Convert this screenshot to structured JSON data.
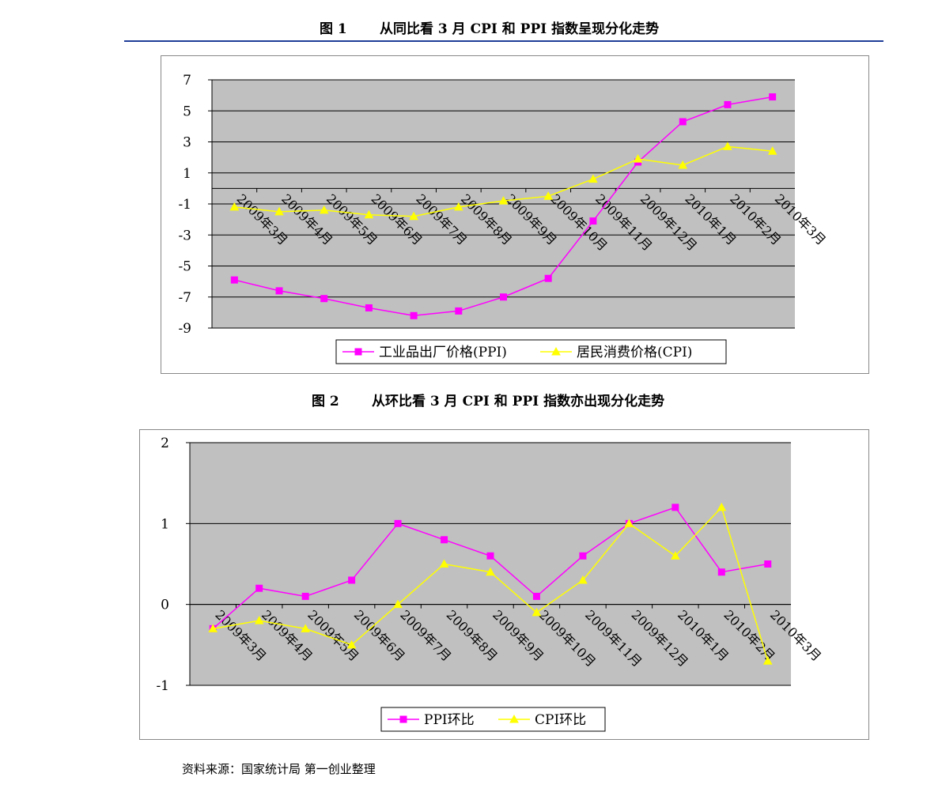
{
  "chart_data": [
    {
      "type": "line",
      "figure_label": "图 1",
      "title": "从同比看 3 月 CPI 和 PPI 指数呈现分化走势",
      "categories": [
        "2009年3月",
        "2009年4月",
        "2009年5月",
        "2009年6月",
        "2009年7月",
        "2009年8月",
        "2009年9月",
        "2009年10月",
        "2009年11月",
        "2009年12月",
        "2010年1月",
        "2010年2月",
        "2010年3月"
      ],
      "series": [
        {
          "name": "工业品出厂价格(PPI)",
          "color": "#ff00ff",
          "marker": "square",
          "values": [
            -5.9,
            -6.6,
            -7.1,
            -7.7,
            -8.2,
            -7.9,
            -7.0,
            -5.8,
            -2.1,
            1.7,
            4.3,
            5.4,
            5.9
          ]
        },
        {
          "name": "居民消费价格(CPI)",
          "color": "#ffff00",
          "marker": "triangle",
          "values": [
            -1.2,
            -1.5,
            -1.4,
            -1.7,
            -1.8,
            -1.2,
            -0.8,
            -0.5,
            0.6,
            1.9,
            1.5,
            2.7,
            2.4
          ]
        }
      ],
      "ylim": [
        -9,
        7
      ],
      "yticks": [
        -9,
        -7,
        -5,
        -3,
        -1,
        1,
        3,
        5,
        7
      ],
      "grid": true,
      "legend": "bottom"
    },
    {
      "type": "line",
      "figure_label": "图 2",
      "title": "从环比看 3 月 CPI 和 PPI 指数亦出现分化走势",
      "categories": [
        "2009年3月",
        "2009年4月",
        "2009年5月",
        "2009年6月",
        "2009年7月",
        "2009年8月",
        "2009年9月",
        "2009年10月",
        "2009年11月",
        "2009年12月",
        "2010年1月",
        "2010年2月",
        "2010年3月"
      ],
      "series": [
        {
          "name": "PPI环比",
          "color": "#ff00ff",
          "marker": "square",
          "values": [
            -0.3,
            0.2,
            0.1,
            0.3,
            1.0,
            0.8,
            0.6,
            0.1,
            0.6,
            1.0,
            1.2,
            0.4,
            0.5
          ]
        },
        {
          "name": "CPI环比",
          "color": "#ffff00",
          "marker": "triangle",
          "values": [
            -0.3,
            -0.2,
            -0.3,
            -0.5,
            0.0,
            0.5,
            0.4,
            -0.1,
            0.3,
            1.0,
            0.6,
            1.2,
            -0.7
          ]
        }
      ],
      "ylim": [
        -1,
        2
      ],
      "yticks": [
        -1,
        0,
        1,
        2
      ],
      "grid": true,
      "legend": "bottom"
    }
  ],
  "source": "资料来源：国家统计局  第一创业整理"
}
